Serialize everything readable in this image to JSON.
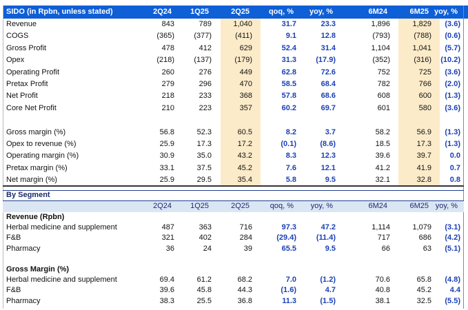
{
  "main_table": {
    "header": [
      "SIDO (in Rpbn, unless stated)",
      "2Q24",
      "1Q25",
      "2Q25",
      "qoq, %",
      "yoy, %",
      "6M24",
      "6M25",
      "yoy, %"
    ],
    "groups": [
      [
        [
          "Revenue",
          "843",
          "789",
          "1,040",
          "31.7",
          "23.3",
          "1,896",
          "1,829",
          "(3.6)"
        ],
        [
          "COGS",
          "(365)",
          "(377)",
          "(411)",
          "9.1",
          "12.8",
          "(793)",
          "(788)",
          "(0.6)"
        ],
        [
          "Gross Profit",
          "478",
          "412",
          "629",
          "52.4",
          "31.4",
          "1,104",
          "1,041",
          "(5.7)"
        ],
        [
          "Opex",
          "(218)",
          "(137)",
          "(179)",
          "31.3",
          "(17.9)",
          "(352)",
          "(316)",
          "(10.2)"
        ],
        [
          "Operating Profit",
          "260",
          "276",
          "449",
          "62.8",
          "72.6",
          "752",
          "725",
          "(3.6)"
        ],
        [
          "Pretax Profit",
          "279",
          "296",
          "470",
          "58.5",
          "68.4",
          "782",
          "766",
          "(2.0)"
        ],
        [
          "Net Profit",
          "218",
          "233",
          "368",
          "57.8",
          "68.6",
          "608",
          "600",
          "(1.3)"
        ],
        [
          "Core Net Profit",
          "210",
          "223",
          "357",
          "60.2",
          "69.7",
          "601",
          "580",
          "(3.6)"
        ]
      ],
      [
        [
          "Gross margin (%)",
          "56.8",
          "52.3",
          "60.5",
          "8.2",
          "3.7",
          "58.2",
          "56.9",
          "(1.3)"
        ],
        [
          "Opex to revenue (%)",
          "25.9",
          "17.3",
          "17.2",
          "(0.1)",
          "(8.6)",
          "18.5",
          "17.3",
          "(1.3)"
        ],
        [
          "Operating margin (%)",
          "30.9",
          "35.0",
          "43.2",
          "8.3",
          "12.3",
          "39.6",
          "39.7",
          "0.0"
        ],
        [
          "Pretax margin (%)",
          "33.1",
          "37.5",
          "45.2",
          "7.6",
          "12.1",
          "41.2",
          "41.9",
          "0.7"
        ],
        [
          "Net margin (%)",
          "25.9",
          "29.5",
          "35.4",
          "5.8",
          "9.5",
          "32.1",
          "32.8",
          "0.8"
        ]
      ]
    ]
  },
  "segment_table": {
    "title": "By Segment",
    "header": [
      "2Q24",
      "1Q25",
      "2Q25",
      "qoq, %",
      "yoy, %",
      "6M24",
      "6M25",
      "yoy, %"
    ],
    "sections": [
      {
        "title": "Revenue (Rpbn)",
        "rows": [
          [
            "Herbal medicine and supplement",
            "487",
            "363",
            "716",
            "97.3",
            "47.2",
            "1,114",
            "1,079",
            "(3.1)"
          ],
          [
            "F&B",
            "321",
            "402",
            "284",
            "(29.4)",
            "(11.4)",
            "717",
            "686",
            "(4.2)"
          ],
          [
            "Pharmacy",
            "36",
            "24",
            "39",
            "65.5",
            "9.5",
            "66",
            "63",
            "(5.1)"
          ]
        ]
      },
      {
        "title": "Gross Margin (%)",
        "rows": [
          [
            "Herbal medicine and supplement",
            "69.4",
            "61.2",
            "68.2",
            "7.0",
            "(1.2)",
            "70.6",
            "65.8",
            "(4.8)"
          ],
          [
            "F&B",
            "39.6",
            "45.8",
            "44.3",
            "(1.6)",
            "4.7",
            "40.8",
            "45.2",
            "4.4"
          ],
          [
            "Pharmacy",
            "38.3",
            "25.5",
            "36.8",
            "11.3",
            "(1.5)",
            "38.1",
            "32.5",
            "(5.5)"
          ]
        ]
      }
    ]
  }
}
